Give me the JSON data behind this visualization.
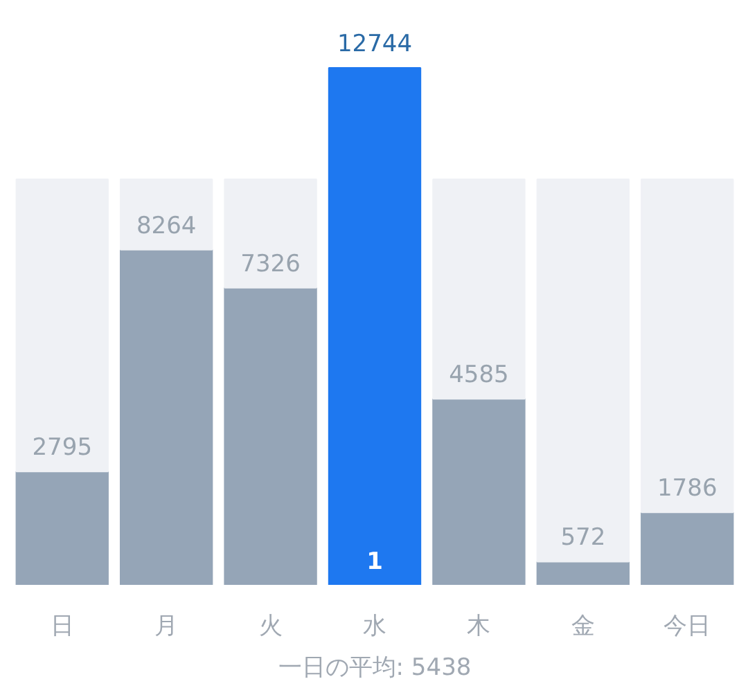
{
  "chart_data": {
    "type": "bar",
    "categories": [
      "日",
      "月",
      "火",
      "水",
      "木",
      "金",
      "今日"
    ],
    "series": [
      {
        "colors": [
          "#95a5b7",
          "#95a5b7",
          "#95a5b7",
          "#1e78f0",
          "#95a5b7",
          "#95a5b7",
          "#95a5b7"
        ],
        "values": [
          2795,
          8264,
          7326,
          12744,
          4585,
          572,
          1786
        ],
        "value_labels": [
          "2795",
          "8264",
          "7326",
          "12744",
          "4585",
          "572",
          "1786"
        ]
      },
      {
        "color": "#eff1f5",
        "values": [
          7205,
          1736,
          2674,
          null,
          5415,
          9428,
          8214
        ]
      }
    ],
    "stacked": true,
    "annotations": [
      "1",
      "一日の平均: 5438"
    ]
  }
}
